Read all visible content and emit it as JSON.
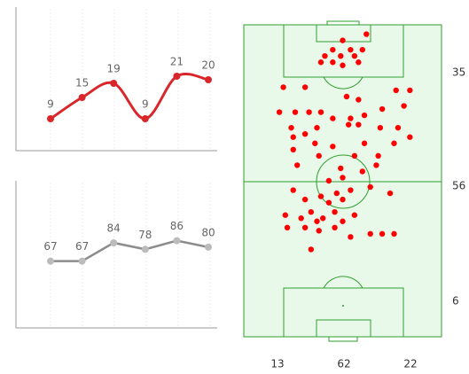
{
  "chart_data": [
    {
      "type": "line",
      "smooth": true,
      "color": "#d9262b",
      "categories": [
        null,
        null,
        null,
        null,
        null,
        null
      ],
      "values": [
        9,
        15,
        19,
        9,
        21,
        20
      ],
      "ylim": [
        0,
        40
      ]
    },
    {
      "type": "line",
      "smooth": false,
      "color": "#8c8c8c",
      "categories": [
        null,
        null,
        null,
        null,
        null,
        null
      ],
      "values": [
        67,
        67,
        84,
        78,
        86,
        80
      ],
      "ylim": [
        0,
        140
      ]
    },
    {
      "type": "scatter",
      "color": "#ff0000",
      "xlim": [
        0,
        100
      ],
      "ylim": [
        0,
        100
      ],
      "x": [
        62,
        50,
        45,
        54,
        60,
        41,
        49,
        56,
        39,
        45,
        58,
        50,
        20,
        31,
        52,
        58,
        77,
        84,
        18,
        26,
        33,
        39,
        45,
        54,
        61,
        70,
        81,
        24,
        31,
        37,
        53,
        58,
        69,
        78,
        84,
        25,
        36,
        45,
        61,
        76,
        25,
        38,
        56,
        68,
        27,
        49,
        60,
        67,
        43,
        50,
        54,
        47,
        50,
        43,
        25,
        31,
        39,
        64,
        74,
        34,
        40,
        46,
        21,
        29,
        37,
        50,
        56,
        22,
        31,
        38,
        46,
        64,
        70,
        76,
        54,
        34
      ],
      "y": [
        3,
        5,
        8,
        8,
        8,
        10,
        10,
        10,
        12,
        12,
        12,
        13,
        20,
        20,
        23,
        24,
        21,
        21,
        28,
        28,
        28,
        28,
        30,
        30,
        29,
        27,
        26,
        33,
        35,
        33,
        32,
        32,
        33,
        33,
        36,
        36,
        38,
        39,
        38,
        38,
        40,
        42,
        42,
        42,
        45,
        46,
        47,
        45,
        50,
        49,
        53,
        54,
        56,
        57,
        53,
        56,
        55,
        52,
        54,
        60,
        62,
        60,
        61,
        62,
        63,
        63,
        61,
        65,
        65,
        66,
        65,
        67,
        67,
        67,
        68,
        72
      ],
      "row_totals": [
        35,
        56,
        6
      ],
      "column_totals": [
        13,
        62,
        22
      ]
    }
  ]
}
